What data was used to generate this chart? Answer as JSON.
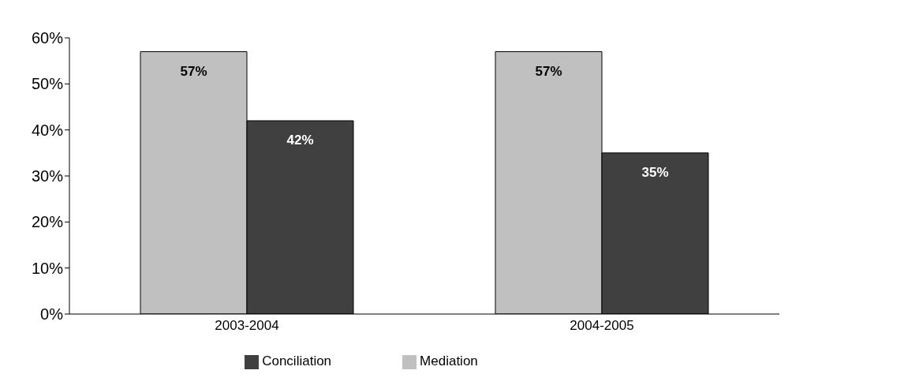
{
  "chart_data": {
    "type": "bar",
    "categories": [
      "2003-2004",
      "2004-2005"
    ],
    "series": [
      {
        "name": "Mediation",
        "color": "#c0c0c0",
        "values": [
          57,
          57
        ],
        "value_labels": [
          "57%",
          "57%"
        ]
      },
      {
        "name": "Conciliation",
        "color": "#404040",
        "values": [
          42,
          35
        ],
        "value_labels": [
          "42%",
          "35%"
        ]
      }
    ],
    "ylim": [
      0,
      60
    ],
    "yticks": [
      {
        "value": 0,
        "label": "0%"
      },
      {
        "value": 10,
        "label": "10%"
      },
      {
        "value": 20,
        "label": "20%"
      },
      {
        "value": 30,
        "label": "30%"
      },
      {
        "value": 40,
        "label": "40%"
      },
      {
        "value": 50,
        "label": "50%"
      },
      {
        "value": 60,
        "label": "60%"
      }
    ],
    "grid": false,
    "legend": "bottom"
  }
}
